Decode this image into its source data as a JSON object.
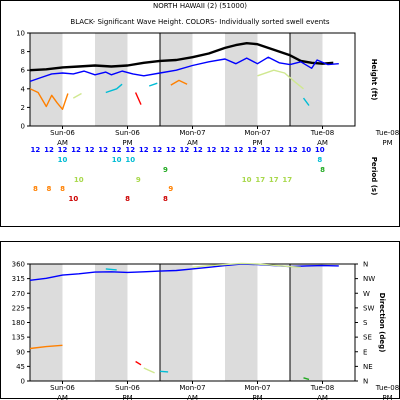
{
  "title": "NORTH HAWAII (2) (51000)",
  "chart_data": [
    {
      "type": "line",
      "subtitle": "BLACK- Significant Wave Height.  COLORS- Individually sorted swell events",
      "ylabel": "Height (ft)",
      "ylim": [
        0,
        10
      ],
      "yticks": [
        "0",
        "2",
        "4",
        "6",
        "8",
        "10"
      ],
      "xlim": [
        0,
        60
      ],
      "x_tick_labels": [
        {
          "x": 6,
          "line1": "Sun-06",
          "line2": "AM"
        },
        {
          "x": 18,
          "line1": "Sun-06",
          "line2": "PM"
        },
        {
          "x": 30,
          "line1": "Mon-07",
          "line2": "AM"
        },
        {
          "x": 42,
          "line1": "Mon-07",
          "line2": "PM"
        },
        {
          "x": 54,
          "line1": "Tue-08",
          "line2": "AM"
        },
        {
          "x": 66,
          "line1": "Tue-08",
          "line2": "PM"
        }
      ],
      "grid": "shaded alternate 6-hour bands",
      "series": [
        {
          "color": "#000000",
          "x": [
            0,
            3,
            6,
            9,
            12,
            15,
            18,
            21,
            24,
            27,
            30,
            33,
            36,
            38,
            40,
            42,
            45,
            48,
            50,
            52,
            54,
            56
          ],
          "values": [
            6.0,
            6.1,
            6.3,
            6.4,
            6.5,
            6.4,
            6.5,
            6.8,
            7.0,
            7.1,
            7.4,
            7.8,
            8.4,
            8.7,
            8.9,
            8.8,
            8.2,
            7.6,
            7.0,
            6.8,
            6.7,
            6.8
          ]
        },
        {
          "color": "#0000ff",
          "x": [
            0,
            2,
            4,
            6,
            8,
            10,
            12,
            14,
            15,
            17,
            19,
            21,
            24,
            27,
            30,
            33,
            36,
            38,
            40,
            42,
            44,
            46,
            48,
            50,
            52,
            53,
            55,
            57
          ],
          "values": [
            4.8,
            5.2,
            5.6,
            5.7,
            5.6,
            5.9,
            5.5,
            5.8,
            5.5,
            5.9,
            5.6,
            5.4,
            5.7,
            6.0,
            6.5,
            6.9,
            7.2,
            6.7,
            7.3,
            6.7,
            7.4,
            6.8,
            6.6,
            6.9,
            6.2,
            7.1,
            6.6,
            6.7
          ]
        },
        {
          "color": "#ff8000",
          "x": [
            0,
            1.5,
            3,
            4,
            5,
            6,
            7
          ],
          "values": [
            4.0,
            3.6,
            2.1,
            3.3,
            2.5,
            1.8,
            3.5
          ]
        },
        {
          "color": "#ff8000",
          "x": [
            26,
            27.5,
            29
          ],
          "values": [
            4.4,
            4.9,
            4.5
          ]
        },
        {
          "color": "#d0e890",
          "x": [
            8,
            9.5
          ],
          "values": [
            3.0,
            3.5
          ]
        },
        {
          "color": "#d0e890",
          "x": [
            42,
            45,
            47,
            49,
            50.5
          ],
          "values": [
            5.4,
            6.0,
            5.7,
            4.7,
            4.0
          ]
        },
        {
          "color": "#00bcd4",
          "x": [
            14,
            16,
            17
          ],
          "values": [
            3.6,
            4.0,
            4.5
          ]
        },
        {
          "color": "#00bcd4",
          "x": [
            22,
            23.5
          ],
          "values": [
            4.3,
            4.6
          ]
        },
        {
          "color": "#00bcd4",
          "x": [
            50.5,
            51.5
          ],
          "values": [
            3.0,
            2.2
          ]
        },
        {
          "color": "#ff0000",
          "x": [
            19.5,
            20.5
          ],
          "values": [
            3.6,
            2.3
          ]
        }
      ],
      "period_axis_label": "Period (s)",
      "period_rows": [
        {
          "color": "#0000ff",
          "labels": [
            {
              "x": 1,
              "t": "12"
            },
            {
              "x": 3.5,
              "t": "12"
            },
            {
              "x": 6,
              "t": "12"
            },
            {
              "x": 8.5,
              "t": "12"
            },
            {
              "x": 11,
              "t": "12"
            },
            {
              "x": 13.5,
              "t": "12"
            },
            {
              "x": 16,
              "t": "12"
            },
            {
              "x": 18.5,
              "t": "12"
            },
            {
              "x": 21,
              "t": "12"
            },
            {
              "x": 23.5,
              "t": "12"
            },
            {
              "x": 26,
              "t": "12"
            },
            {
              "x": 28.5,
              "t": "12"
            },
            {
              "x": 31,
              "t": "12"
            },
            {
              "x": 33.5,
              "t": "12"
            },
            {
              "x": 36,
              "t": "12"
            },
            {
              "x": 38.5,
              "t": "12"
            },
            {
              "x": 41,
              "t": "12"
            },
            {
              "x": 43.5,
              "t": "12"
            },
            {
              "x": 46,
              "t": "12"
            },
            {
              "x": 48.5,
              "t": "12"
            },
            {
              "x": 51,
              "t": "10"
            },
            {
              "x": 53.5,
              "t": "10"
            }
          ]
        },
        {
          "color": "#00bcd4",
          "labels": [
            {
              "x": 6,
              "t": "10"
            },
            {
              "x": 16,
              "t": "10"
            },
            {
              "x": 18.5,
              "t": "10"
            },
            {
              "x": 53.5,
              "t": "8"
            }
          ]
        },
        {
          "color": "#22aa22",
          "labels": [
            {
              "x": 25,
              "t": "9"
            },
            {
              "x": 54,
              "t": "8"
            }
          ]
        },
        {
          "color": "#a8d84a",
          "labels": [
            {
              "x": 9,
              "t": "10"
            },
            {
              "x": 20,
              "t": "9"
            },
            {
              "x": 40,
              "t": "10"
            },
            {
              "x": 42.5,
              "t": "17"
            },
            {
              "x": 45,
              "t": "17"
            },
            {
              "x": 47.5,
              "t": "17"
            }
          ]
        },
        {
          "color": "#ff8000",
          "labels": [
            {
              "x": 1,
              "t": "8"
            },
            {
              "x": 3.5,
              "t": "8"
            },
            {
              "x": 6,
              "t": "8"
            },
            {
              "x": 26,
              "t": "9"
            }
          ]
        },
        {
          "color": "#cc0000",
          "labels": [
            {
              "x": 8,
              "t": "10"
            },
            {
              "x": 18,
              "t": "8"
            },
            {
              "x": 25,
              "t": "8"
            }
          ]
        }
      ]
    },
    {
      "type": "line",
      "ylabel": "Direction (deg)",
      "ylim": [
        0,
        360
      ],
      "yticks": [
        "0",
        "45",
        "90",
        "135",
        "180",
        "225",
        "270",
        "315",
        "360"
      ],
      "yticks_right": [
        "N",
        "NE",
        "E",
        "SE",
        "S",
        "SW",
        "W",
        "NW",
        "N"
      ],
      "xlim": [
        0,
        60
      ],
      "x_tick_labels": [
        {
          "x": 6,
          "line1": "Sun-06",
          "line2": "AM"
        },
        {
          "x": 18,
          "line1": "Sun-06",
          "line2": "PM"
        },
        {
          "x": 30,
          "line1": "Mon-07",
          "line2": "AM"
        },
        {
          "x": 42,
          "line1": "Mon-07",
          "line2": "PM"
        },
        {
          "x": 54,
          "line1": "Tue-08",
          "line2": "AM"
        },
        {
          "x": 66,
          "line1": "Tue-08",
          "line2": "PM"
        }
      ],
      "series": [
        {
          "color": "#0000ff",
          "x": [
            0,
            3,
            6,
            9,
            12,
            15,
            18,
            21,
            24,
            27,
            30,
            33,
            36,
            39,
            42,
            45,
            48,
            51,
            54,
            57
          ],
          "values": [
            310,
            316,
            326,
            330,
            335,
            336,
            334,
            336,
            338,
            340,
            345,
            350,
            355,
            360,
            358,
            355,
            352,
            354,
            355,
            354
          ]
        },
        {
          "color": "#ff8000",
          "x": [
            0,
            3,
            6
          ],
          "values": [
            100,
            106,
            110
          ]
        },
        {
          "color": "#00bcd4",
          "x": [
            14,
            16
          ],
          "values": [
            345,
            342
          ]
        },
        {
          "color": "#00bcd4",
          "x": [
            24,
            25.5
          ],
          "values": [
            30,
            28
          ]
        },
        {
          "color": "#ff0000",
          "x": [
            19.5,
            20.5
          ],
          "values": [
            60,
            50
          ]
        },
        {
          "color": "#d0e890",
          "x": [
            21,
            23
          ],
          "values": [
            40,
            25
          ]
        },
        {
          "color": "#d0e890",
          "x": [
            30,
            33,
            36,
            39,
            42,
            45,
            48,
            50
          ],
          "values": [
            350,
            355,
            358,
            362,
            360,
            356,
            352,
            350
          ]
        },
        {
          "color": "#22aa22",
          "x": [
            50.5,
            51.5
          ],
          "values": [
            10,
            5
          ]
        }
      ]
    }
  ]
}
